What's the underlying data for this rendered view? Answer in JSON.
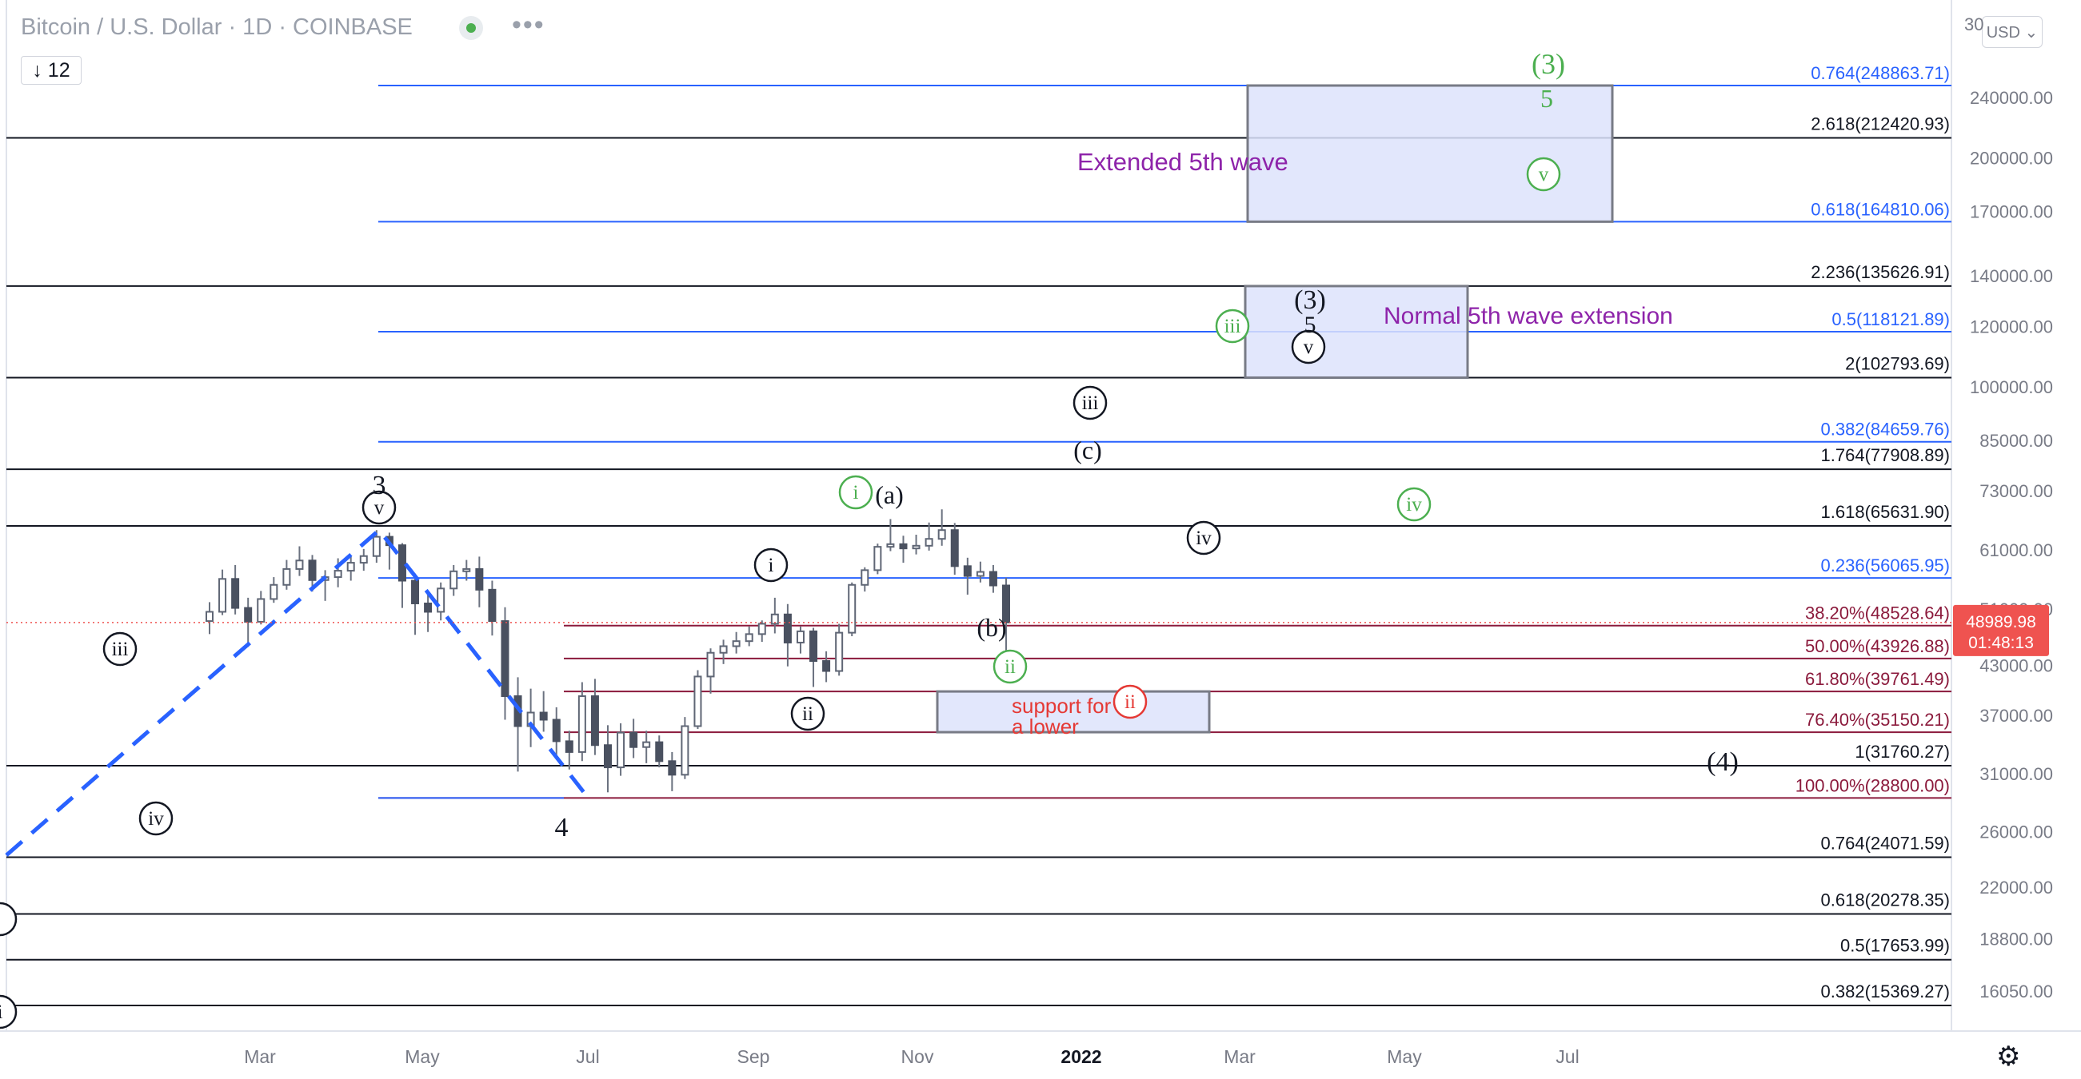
{
  "header": {
    "title": "Bitcoin / U.S. Dollar · 1D · COINBASE",
    "more": "•••",
    "interval": "↓ 12",
    "currency": "USD ⌄"
  },
  "colors": {
    "blue_line": "#2962ff",
    "black_line": "#131722",
    "maroon_line": "#8b1a3c",
    "box_fill": "#dde3fb",
    "box_border": "#787b86",
    "green": "#4caf50",
    "red": "#e53935",
    "purple": "#8e24aa",
    "price_tag": "#ef5350"
  },
  "chart_data": {
    "type": "candlestick",
    "y_scale": "log",
    "price_axis_ticks": [
      "240000.00",
      "200000.00",
      "170000.00",
      "140000.00",
      "120000.00",
      "100000.00",
      "85000.00",
      "73000.00",
      "61000.00",
      "51000.00",
      "43000.00",
      "37000.00",
      "31000.00",
      "26000.00",
      "22000.00",
      "18800.00",
      "16050.00"
    ],
    "price_axis_top_partial": "30",
    "x_axis_ticks": [
      "Mar",
      "May",
      "Jul",
      "Sep",
      "Nov",
      "2022",
      "Mar",
      "May",
      "Jul"
    ],
    "current_price": {
      "value": 48989.98,
      "label": "48989.98",
      "countdown": "01:48:13"
    },
    "fib_levels_blue": [
      {
        "label": "0.764(248863.71)",
        "value": 248863.71
      },
      {
        "label": "0.618(164810.06)",
        "value": 164810.06
      },
      {
        "label": "0.5(118121.89)",
        "value": 118121.89
      },
      {
        "label": "0.382(84659.76)",
        "value": 84659.76
      },
      {
        "label": "0.236(56065.95)",
        "value": 56065.95
      }
    ],
    "fib_levels_black": [
      {
        "label": "2.618(212420.93)",
        "value": 212420.93
      },
      {
        "label": "2.236(135626.91)",
        "value": 135626.91
      },
      {
        "label": "2(102793.69)",
        "value": 102793.69
      },
      {
        "label": "1.764(77908.89)",
        "value": 77908.89
      },
      {
        "label": "1.618(65631.90)",
        "value": 65631.9
      },
      {
        "label": "1(31760.27)",
        "value": 31760.27
      },
      {
        "label": "0.764(24071.59)",
        "value": 24071.59
      },
      {
        "label": "0.618(20278.35)",
        "value": 20278.35
      },
      {
        "label": "0.5(17653.99)",
        "value": 17653.99
      },
      {
        "label": "0.382(15369.27)",
        "value": 15369.27
      }
    ],
    "retracement_levels": [
      {
        "label": "38.20%(48528.64)",
        "value": 48528.64
      },
      {
        "label": "50.00%(43926.88)",
        "value": 43926.88
      },
      {
        "label": "61.80%(39761.49)",
        "value": 39761.49
      },
      {
        "label": "76.40%(35150.21)",
        "value": 35150.21
      },
      {
        "label": "100.00%(28800.00)",
        "value": 28800.0
      }
    ],
    "zones": [
      {
        "label": "Extended 5th wave",
        "from": 164810.06,
        "to": 248863.71
      },
      {
        "label": "Normal 5th wave extension",
        "from": 102793.69,
        "to": 135626.91
      },
      {
        "label": "support for a lower",
        "from": 35150.21,
        "to": 39761.49
      }
    ],
    "wave_labels": {
      "black_circled": [
        "iii",
        "iv",
        "v",
        "i",
        "ii",
        "iii",
        "iv",
        "v"
      ],
      "black_plain": [
        "3",
        "4",
        "(a)",
        "(b)",
        "(c)",
        "(3)",
        "5",
        "(4)"
      ],
      "green": [
        "(3)",
        "5",
        "v",
        "iii",
        "i",
        "ii",
        "iv"
      ],
      "red": [
        "ii"
      ]
    },
    "ohlc": [
      [
        49200,
        52100,
        47300,
        50600
      ],
      [
        50600,
        57500,
        50100,
        55900
      ],
      [
        55900,
        58300,
        50200,
        51200
      ],
      [
        51200,
        52800,
        45500,
        49100
      ],
      [
        49100,
        53900,
        48700,
        52600
      ],
      [
        52600,
        56200,
        52000,
        54900
      ],
      [
        54900,
        59200,
        54100,
        57600
      ],
      [
        57600,
        61700,
        56400,
        59100
      ],
      [
        59100,
        60100,
        53800,
        55700
      ],
      [
        55700,
        57400,
        52300,
        56200
      ],
      [
        56200,
        59500,
        54500,
        57300
      ],
      [
        57300,
        59800,
        55600,
        58700
      ],
      [
        58700,
        61200,
        57300,
        59900
      ],
      [
        59900,
        64800,
        58700,
        63500
      ],
      [
        63500,
        64300,
        57500,
        61900
      ],
      [
        61900,
        62300,
        51200,
        55600
      ],
      [
        55600,
        56800,
        47200,
        51900
      ],
      [
        51900,
        53300,
        47600,
        50600
      ],
      [
        50600,
        55300,
        49300,
        54300
      ],
      [
        54300,
        58300,
        53100,
        57200
      ],
      [
        57200,
        59200,
        55600,
        57600
      ],
      [
        57600,
        59800,
        51300,
        54100
      ],
      [
        54100,
        55600,
        47100,
        49200
      ],
      [
        49200,
        51300,
        36500,
        39200
      ],
      [
        39200,
        41500,
        31200,
        35800
      ],
      [
        35800,
        40100,
        33600,
        37300
      ],
      [
        37300,
        39800,
        35200,
        36500
      ],
      [
        36500,
        37900,
        32800,
        34200
      ],
      [
        34200,
        35300,
        31400,
        33100
      ],
      [
        33100,
        40900,
        32200,
        39200
      ],
      [
        39200,
        41300,
        32800,
        33800
      ],
      [
        33800,
        35900,
        29300,
        31600
      ],
      [
        31600,
        36100,
        30800,
        35100
      ],
      [
        35100,
        36600,
        32500,
        33600
      ],
      [
        33600,
        35300,
        32000,
        34100
      ],
      [
        34100,
        34800,
        31600,
        32200
      ],
      [
        32200,
        33100,
        29400,
        30900
      ],
      [
        30900,
        36800,
        30500,
        35800
      ],
      [
        35800,
        42400,
        35500,
        41600
      ],
      [
        41600,
        45300,
        39500,
        44700
      ],
      [
        44700,
        46500,
        43200,
        45600
      ],
      [
        45600,
        47600,
        44600,
        46300
      ],
      [
        46300,
        48400,
        45600,
        47300
      ],
      [
        47300,
        49300,
        46200,
        48800
      ],
      [
        48800,
        52800,
        47400,
        50200
      ],
      [
        50200,
        51800,
        42900,
        46100
      ],
      [
        46100,
        48400,
        44600,
        47700
      ],
      [
        47700,
        48200,
        40300,
        43600
      ],
      [
        43600,
        44900,
        40900,
        42300
      ],
      [
        42300,
        48800,
        41700,
        47500
      ],
      [
        47500,
        55300,
        47000,
        54900
      ],
      [
        54900,
        57900,
        53800,
        57400
      ],
      [
        57400,
        62200,
        56700,
        61600
      ],
      [
        61600,
        67000,
        60800,
        62100
      ],
      [
        62100,
        63700,
        58700,
        61300
      ],
      [
        61300,
        63900,
        60200,
        61800
      ],
      [
        61800,
        66300,
        60900,
        63100
      ],
      [
        63100,
        69000,
        61800,
        64800
      ],
      [
        64800,
        66200,
        56600,
        58100
      ],
      [
        58100,
        59600,
        53300,
        56400
      ],
      [
        56400,
        58900,
        55300,
        57100
      ],
      [
        57100,
        58300,
        53600,
        54800
      ],
      [
        54800,
        56100,
        42000,
        48990
      ]
    ]
  }
}
